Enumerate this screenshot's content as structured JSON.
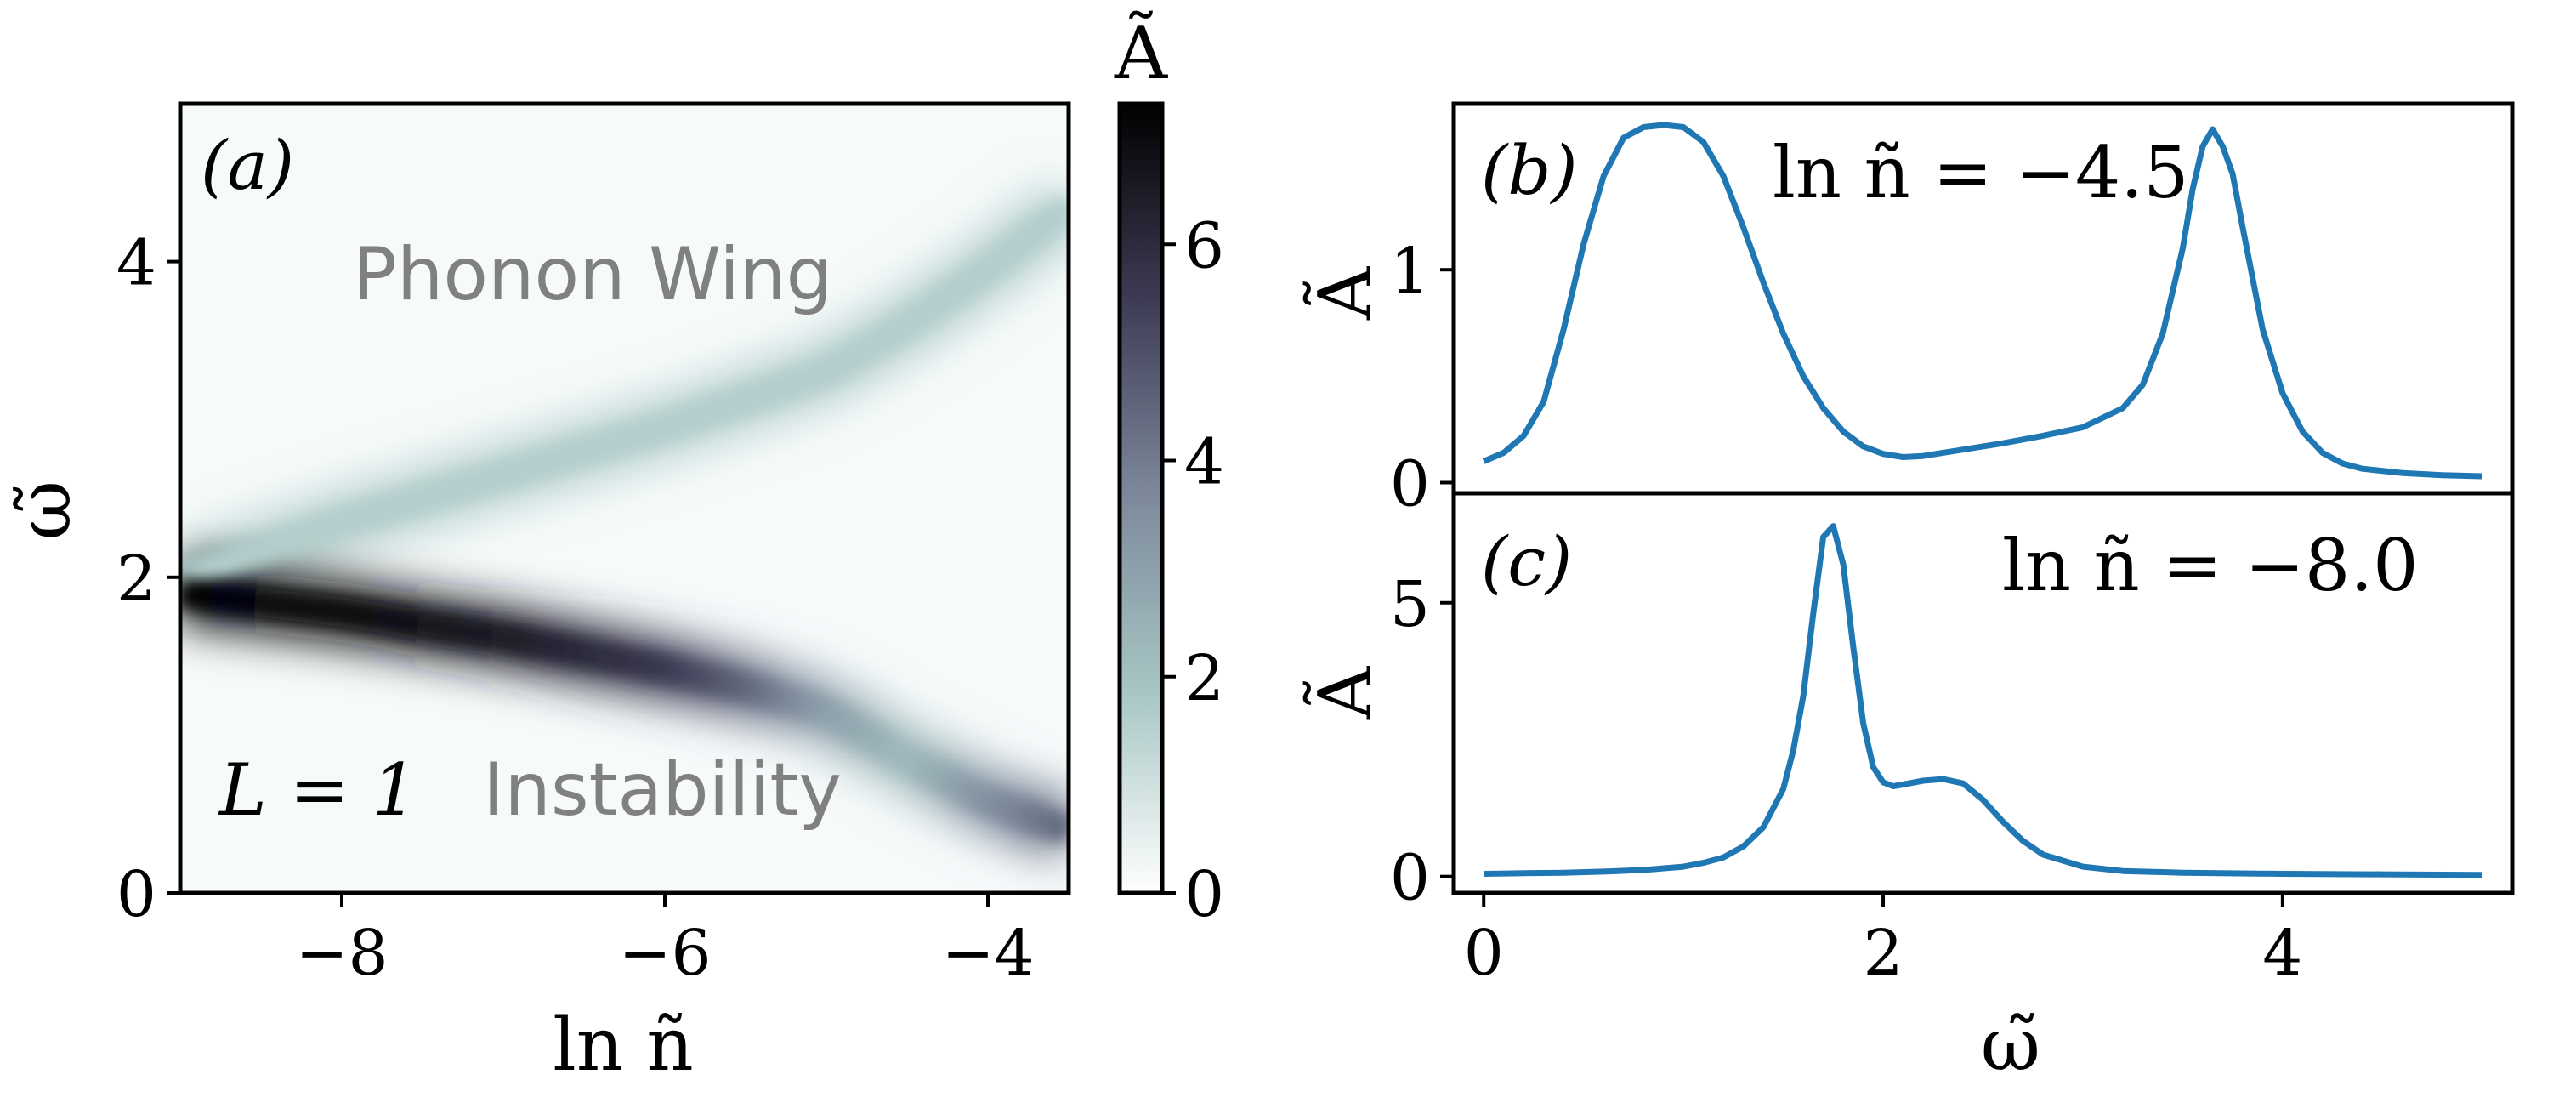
{
  "chart_data": [
    {
      "panel": "a",
      "type": "heatmap",
      "panel_label": "(a)",
      "xlabel": "ln ñ",
      "ylabel": "ω̃",
      "xlim": [
        -9.0,
        -3.5
      ],
      "ylim": [
        0,
        5
      ],
      "xticks": [
        -8,
        -6,
        -4
      ],
      "xtick_labels": [
        "−8",
        "−6",
        "−4"
      ],
      "yticks": [
        0,
        2,
        4
      ],
      "ytick_labels": [
        "0",
        "2",
        "4"
      ],
      "colorbar": {
        "label": "Ã",
        "range": [
          0,
          7.3
        ],
        "ticks": [
          0,
          2,
          4,
          6
        ],
        "tick_labels": [
          "0",
          "2",
          "4",
          "6"
        ],
        "colormap": "bone_r"
      },
      "annotations": [
        "Phonon Wing",
        "Instability",
        "L = 1"
      ],
      "features": {
        "upper_branch": {
          "x": [
            -9.0,
            -8.0,
            -7.0,
            -6.0,
            -5.0,
            -4.5,
            -4.0,
            -3.5
          ],
          "y": [
            2.0,
            2.35,
            2.65,
            2.95,
            3.3,
            3.6,
            3.95,
            4.35
          ],
          "peak": 1.6
        },
        "lower_branch": {
          "x": [
            -9.0,
            -8.0,
            -7.0,
            -6.0,
            -5.5,
            -5.0,
            -4.5,
            -4.0,
            -3.5
          ],
          "y": [
            1.9,
            1.78,
            1.62,
            1.42,
            1.3,
            1.15,
            0.85,
            0.58,
            0.4
          ],
          "peak": [
            7.2,
            7.0,
            6.5,
            5.6,
            4.5,
            3.0,
            2.2,
            3.5,
            4.5
          ]
        }
      }
    },
    {
      "panel": "b",
      "type": "line",
      "panel_label": "(b)",
      "annotation": "ln ñ = −4.5",
      "ylabel": "Ã",
      "xlim": [
        -0.15,
        5.15
      ],
      "ylim": [
        -0.05,
        1.78
      ],
      "yticks": [
        0,
        1
      ],
      "ytick_labels": [
        "0",
        "1"
      ],
      "x": [
        0,
        0.1,
        0.2,
        0.3,
        0.4,
        0.5,
        0.6,
        0.7,
        0.8,
        0.9,
        1.0,
        1.1,
        1.2,
        1.3,
        1.4,
        1.5,
        1.6,
        1.7,
        1.8,
        1.9,
        2.0,
        2.1,
        2.2,
        2.4,
        2.6,
        2.8,
        3.0,
        3.2,
        3.3,
        3.4,
        3.5,
        3.55,
        3.6,
        3.65,
        3.7,
        3.75,
        3.8,
        3.9,
        4.0,
        4.1,
        4.2,
        4.3,
        4.4,
        4.6,
        4.8,
        5.0
      ],
      "y": [
        0.1,
        0.14,
        0.22,
        0.38,
        0.72,
        1.12,
        1.44,
        1.62,
        1.67,
        1.68,
        1.67,
        1.6,
        1.44,
        1.2,
        0.94,
        0.7,
        0.5,
        0.35,
        0.24,
        0.17,
        0.135,
        0.12,
        0.125,
        0.155,
        0.185,
        0.22,
        0.26,
        0.35,
        0.46,
        0.7,
        1.1,
        1.38,
        1.58,
        1.66,
        1.58,
        1.45,
        1.2,
        0.72,
        0.42,
        0.24,
        0.14,
        0.09,
        0.065,
        0.045,
        0.035,
        0.03
      ]
    },
    {
      "panel": "c",
      "type": "line",
      "panel_label": "(c)",
      "annotation": "ln ñ = −8.0",
      "xlabel": "ω̃",
      "ylabel": "Ã",
      "xlim": [
        -0.15,
        5.15
      ],
      "ylim": [
        -0.3,
        7.0
      ],
      "xticks": [
        0,
        2,
        4
      ],
      "xtick_labels": [
        "0",
        "2",
        "4"
      ],
      "yticks": [
        0,
        5
      ],
      "ytick_labels": [
        "0",
        "5"
      ],
      "x": [
        0,
        0.2,
        0.4,
        0.6,
        0.8,
        1.0,
        1.1,
        1.2,
        1.3,
        1.4,
        1.5,
        1.55,
        1.6,
        1.65,
        1.7,
        1.75,
        1.8,
        1.85,
        1.9,
        1.95,
        2.0,
        2.05,
        2.1,
        2.2,
        2.3,
        2.4,
        2.5,
        2.6,
        2.7,
        2.8,
        3.0,
        3.2,
        3.5,
        4.0,
        4.5,
        5.0
      ],
      "y": [
        0.05,
        0.06,
        0.07,
        0.09,
        0.12,
        0.18,
        0.25,
        0.35,
        0.55,
        0.9,
        1.6,
        2.3,
        3.3,
        4.8,
        6.2,
        6.4,
        5.7,
        4.2,
        2.8,
        2.0,
        1.72,
        1.65,
        1.68,
        1.75,
        1.78,
        1.7,
        1.4,
        1.0,
        0.65,
        0.4,
        0.18,
        0.1,
        0.07,
        0.05,
        0.04,
        0.03
      ]
    }
  ]
}
